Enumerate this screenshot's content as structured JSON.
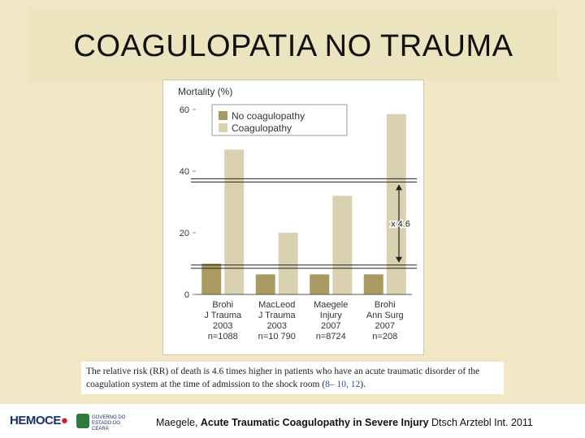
{
  "slide": {
    "title": "COAGULOPATIA NO TRAUMA",
    "caption_text": "The relative risk (RR) of death is 4.6 times higher in patients who have an acute traumatic disorder of the coagulation system at the time of admission to the shock room (",
    "caption_refs": "8– 10, 12",
    "caption_end": ").",
    "reference_authors": "Maegele, ",
    "reference_title": "Acute Traumatic Coagulopathy in Severe Injury",
    "reference_source": " Dtsch Arztebl Int. 2011",
    "logo_hemoce_text": "HEMOCE",
    "logo_gov_text": "GOVERNO DO ESTADO DO CEARÁ"
  },
  "chart_data": {
    "type": "bar",
    "ylabel": "Mortality (%)",
    "ylim": [
      0,
      60
    ],
    "yticks": [
      "0",
      "20",
      "40",
      "60"
    ],
    "categories": [
      [
        "Brohi",
        "J Trauma",
        "2003",
        "n=1088"
      ],
      [
        "MacLeod",
        "J Trauma",
        "2003",
        "n=10 790"
      ],
      [
        "Maegele",
        "Injury",
        "2007",
        "n=8724"
      ],
      [
        "Brohi",
        "Ann Surg",
        "2007",
        "n=208"
      ]
    ],
    "series": [
      {
        "name": "No coagulopathy",
        "color": "#a89a60",
        "values": [
          10,
          6.5,
          6.5,
          6.5
        ]
      },
      {
        "name": "Coagulopathy",
        "color": "#d9d0b0",
        "values": [
          47,
          20,
          32,
          58.5
        ]
      }
    ],
    "legend_position": "top-left",
    "annotation": {
      "text": "x 4.6",
      "from": 9,
      "to": 37
    }
  }
}
